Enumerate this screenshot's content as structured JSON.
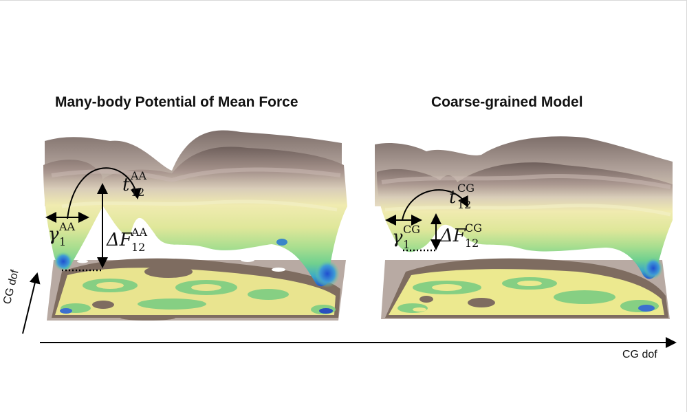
{
  "panels": {
    "left": {
      "title": "Many-body Potential of Mean Force"
    },
    "right": {
      "title": "Coarse-grained Model"
    }
  },
  "axes": {
    "x_label": "CG dof",
    "y_label": "CG dof"
  },
  "annotations": {
    "left": {
      "gamma": {
        "symbol": "γ",
        "sub": "1",
        "sup": "AA"
      },
      "time": {
        "symbol": "t",
        "sub": "12",
        "sup": "AA"
      },
      "delta_f": {
        "symbol": "ΔF",
        "sub": "12",
        "sup": "AA"
      }
    },
    "right": {
      "gamma": {
        "symbol": "γ",
        "sub": "1",
        "sup": "CG"
      },
      "time": {
        "symbol": "t",
        "sub": "12",
        "sup": "CG"
      },
      "delta_f": {
        "symbol": "ΔF",
        "sub": "12",
        "sup": "CG"
      }
    }
  },
  "colors": {
    "surface_top": "#8a7a76",
    "surface_mid": "#e9e4a6",
    "surface_green": "#86d38a",
    "surface_blue": "#2f6fd3",
    "base_brown": "#7b6a5e",
    "base_yellow": "#ece98f",
    "base_green": "#86cf83",
    "base_grey": "#a89c96"
  }
}
